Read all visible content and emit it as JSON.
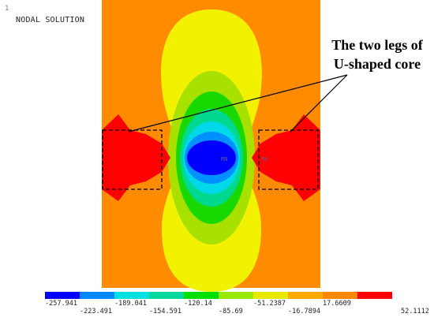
{
  "header": {
    "window_index": "1",
    "title": "NODAL SOLUTION"
  },
  "annotation": {
    "line1": "The two legs of",
    "line2": "U-shaped core"
  },
  "marker_labels": [
    "MN",
    "MX"
  ],
  "legend": {
    "colors": [
      "#0000ff",
      "#0088ff",
      "#00e0e0",
      "#00d8a0",
      "#00e000",
      "#99e800",
      "#e8e800",
      "#ffaa00",
      "#ff8800",
      "#ff0000"
    ],
    "top_labels": [
      "-257.941",
      "-189.041",
      "-120.14",
      "-51.2387",
      "17.6609"
    ],
    "bottom_labels": [
      "-223.491",
      "-154.591",
      "-85.69",
      "-16.7894",
      "52.1112"
    ]
  },
  "colors": {
    "background_band": "#ff8c00",
    "high": "#ff0000",
    "low": "#0000ff"
  }
}
